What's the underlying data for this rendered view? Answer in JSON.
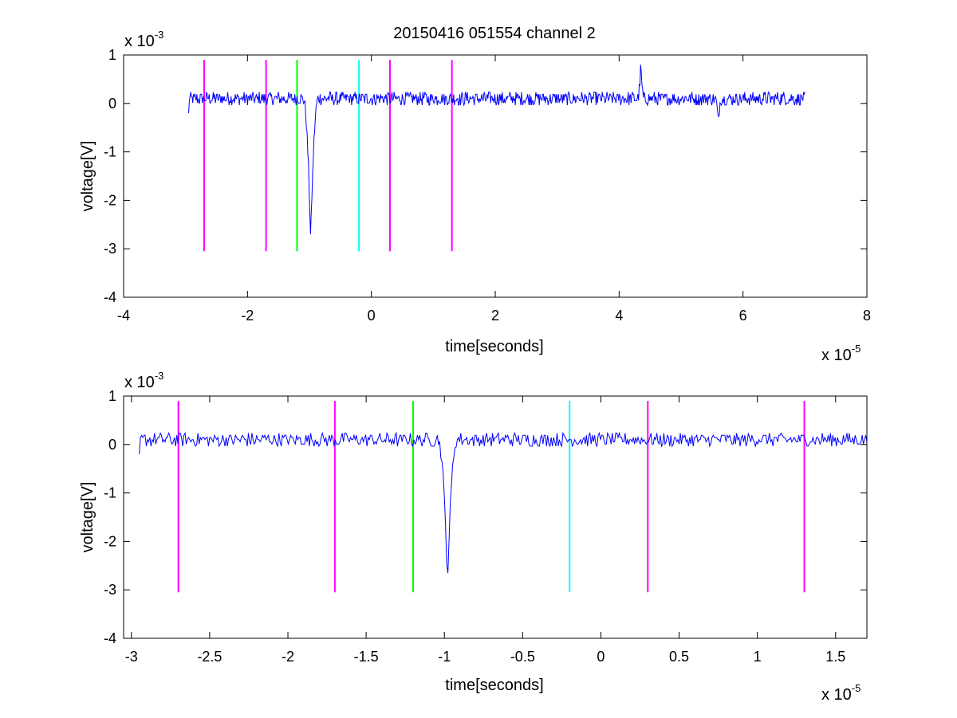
{
  "title": "20150416 051554 channel 2",
  "colors": {
    "signal": "#0000ff",
    "magenta": "#ff00ff",
    "green": "#00ff00",
    "cyan": "#00ffff",
    "axis": "#000000"
  },
  "chart_data": [
    {
      "type": "line",
      "title": "20150416 051554 channel 2",
      "xlabel": "time[seconds]",
      "ylabel": "voltage[V]",
      "xlim": [
        -4,
        8
      ],
      "ylim": [
        -4,
        1
      ],
      "x_scale_note": "x 10",
      "x_scale_exp": "-5",
      "y_scale_note": "x 10",
      "y_scale_exp": "-3",
      "x_ticks": [
        -4,
        -2,
        0,
        2,
        4,
        6,
        8
      ],
      "x_tick_labels": [
        "-4",
        "-2",
        "0",
        "2",
        "4",
        "6",
        "8"
      ],
      "y_ticks": [
        -4,
        -3,
        -2,
        -1,
        0,
        1
      ],
      "y_tick_labels": [
        "-4",
        "-3",
        "-2",
        "-1",
        "0",
        "1"
      ],
      "signal": {
        "x_start": -2.95,
        "x_end": 7.0,
        "baseline": 0.1,
        "noise": 0.15,
        "spikes": [
          {
            "x": -0.98,
            "y": -2.8,
            "width": 0.12
          },
          {
            "x": 4.35,
            "y": 0.8,
            "width": 0.05
          },
          {
            "x": 5.6,
            "y": -0.4,
            "width": 0.05
          }
        ]
      },
      "markers": [
        {
          "x": -2.7,
          "color": "magenta",
          "top": 0.9,
          "bottom": -3.05
        },
        {
          "x": -1.7,
          "color": "magenta",
          "top": 0.9,
          "bottom": -3.05
        },
        {
          "x": -1.2,
          "color": "green",
          "top": 0.9,
          "bottom": -3.05
        },
        {
          "x": -0.2,
          "color": "cyan",
          "top": 0.9,
          "bottom": -3.05
        },
        {
          "x": 0.3,
          "color": "magenta",
          "top": 0.9,
          "bottom": -3.05
        },
        {
          "x": 1.3,
          "color": "magenta",
          "top": 0.9,
          "bottom": -3.05
        }
      ]
    },
    {
      "type": "line",
      "xlabel": "time[seconds]",
      "ylabel": "voltage[V]",
      "xlim": [
        -3.05,
        1.7
      ],
      "ylim": [
        -4,
        1
      ],
      "x_scale_note": "x 10",
      "x_scale_exp": "-5",
      "y_scale_note": "x 10",
      "y_scale_exp": "-3",
      "x_ticks": [
        -3,
        -2.5,
        -2,
        -1.5,
        -1,
        -0.5,
        0,
        0.5,
        1,
        1.5
      ],
      "x_tick_labels": [
        "-3",
        "-2.5",
        "-2",
        "-1.5",
        "-1",
        "-0.5",
        "0",
        "0.5",
        "1",
        "1.5"
      ],
      "y_ticks": [
        -4,
        -3,
        -2,
        -1,
        0,
        1
      ],
      "y_tick_labels": [
        "-4",
        "-3",
        "-2",
        "-1",
        "0",
        "1"
      ],
      "signal": {
        "x_start": -2.95,
        "x_end": 1.7,
        "baseline": 0.1,
        "noise": 0.15,
        "spikes": [
          {
            "x": -0.98,
            "y": -2.8,
            "width": 0.06
          }
        ]
      },
      "markers": [
        {
          "x": -2.7,
          "color": "magenta",
          "top": 0.9,
          "bottom": -3.05
        },
        {
          "x": -1.7,
          "color": "magenta",
          "top": 0.9,
          "bottom": -3.05
        },
        {
          "x": -1.2,
          "color": "green",
          "top": 0.9,
          "bottom": -3.05
        },
        {
          "x": -0.2,
          "color": "cyan",
          "top": 0.9,
          "bottom": -3.05
        },
        {
          "x": 0.3,
          "color": "magenta",
          "top": 0.9,
          "bottom": -3.05
        },
        {
          "x": 1.3,
          "color": "magenta",
          "top": 0.9,
          "bottom": -3.05
        }
      ]
    }
  ]
}
